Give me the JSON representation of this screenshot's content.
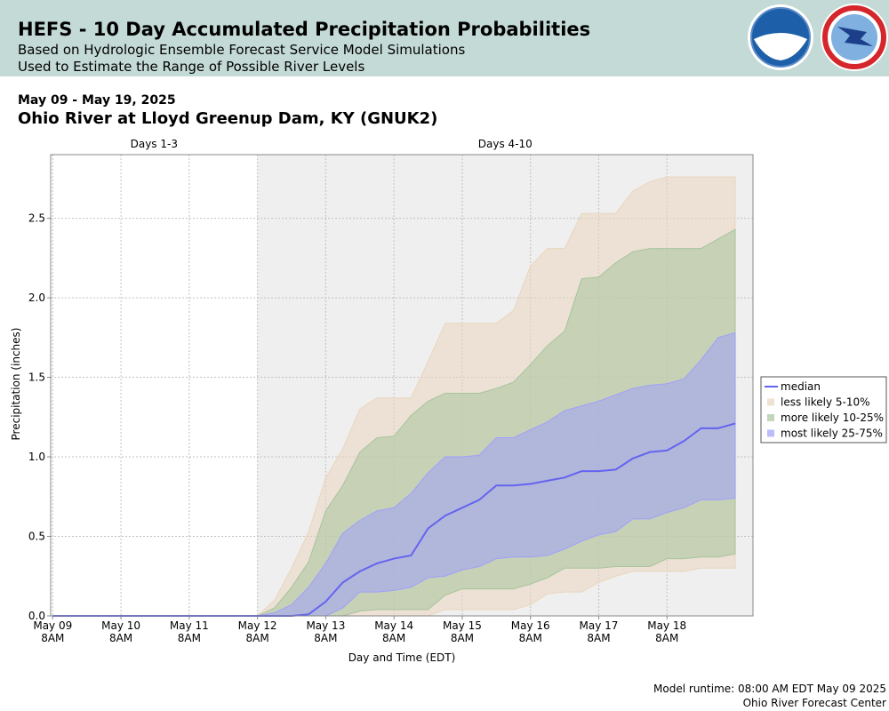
{
  "header": {
    "title": "HEFS - 10 Day Accumulated Precipitation Probabilities",
    "lines": [
      "Based on Hydrologic Ensemble Forecast Service Model Simulations",
      "Used to Estimate the Range of Possible River Levels"
    ]
  },
  "chart_data": {
    "type": "band_line",
    "date_range": "May 09 - May 19, 2025",
    "title": "Ohio River at Lloyd Greenup Dam, KY (GNUK2)",
    "xlabel": "Day and Time (EDT)",
    "ylabel": "Precipitation (inches)",
    "regions": [
      {
        "label": "Days 1-3",
        "from": -0.03,
        "to": 3,
        "color": "#ffffff"
      },
      {
        "label": "Days 4-10",
        "from": 3,
        "to": 10.26,
        "color": "#efefef"
      }
    ],
    "xlim": [
      -0.03,
      10.26
    ],
    "xticks": [
      {
        "value": 0,
        "label": "May 09\n8AM"
      },
      {
        "value": 1,
        "label": "May 10\n8AM"
      },
      {
        "value": 2,
        "label": "May 11\n8AM"
      },
      {
        "value": 3,
        "label": "May 12\n8AM"
      },
      {
        "value": 4,
        "label": "May 13\n8AM"
      },
      {
        "value": 5,
        "label": "May 14\n8AM"
      },
      {
        "value": 6,
        "label": "May 15\n8AM"
      },
      {
        "value": 7,
        "label": "May 16\n8AM"
      },
      {
        "value": 8,
        "label": "May 17\n8AM"
      },
      {
        "value": 9,
        "label": "May 18\n8AM"
      }
    ],
    "ylim": [
      0,
      2.9
    ],
    "yticks": [
      {
        "value": 0,
        "label": "0.0"
      },
      0.5,
      {
        "value": 1,
        "label": "1.0"
      },
      1.5,
      {
        "value": 2,
        "label": "2.0"
      },
      2.5
    ],
    "grid": true,
    "x": [
      0,
      0.25,
      0.5,
      0.75,
      1,
      1.25,
      1.5,
      1.75,
      2,
      2.25,
      2.5,
      2.75,
      3,
      3.25,
      3.5,
      3.75,
      4,
      4.25,
      4.5,
      4.75,
      5,
      5.25,
      5.5,
      5.75,
      6,
      6.25,
      6.5,
      6.75,
      7,
      7.25,
      7.5,
      7.75,
      8,
      8.25,
      8.5,
      8.75,
      9,
      9.25,
      9.5,
      9.75,
      10
    ],
    "bands": [
      {
        "name": "less likely 5-10%",
        "color": "#e9d6bd",
        "lower": [
          0,
          0,
          0,
          0,
          0,
          0,
          0,
          0,
          0,
          0,
          0,
          0,
          0,
          0,
          0,
          0,
          0,
          0,
          0,
          0,
          0,
          0,
          0,
          0.04,
          0.04,
          0.04,
          0.04,
          0.04,
          0.07,
          0.14,
          0.15,
          0.15,
          0.21,
          0.25,
          0.28,
          0.28,
          0.28,
          0.28,
          0.3,
          0.3,
          0.3
        ],
        "upper": [
          0,
          0,
          0,
          0,
          0,
          0,
          0,
          0,
          0,
          0,
          0,
          0,
          0,
          0.1,
          0.3,
          0.53,
          0.87,
          1.05,
          1.3,
          1.37,
          1.37,
          1.37,
          1.6,
          1.84,
          1.84,
          1.84,
          1.84,
          1.92,
          2.2,
          2.31,
          2.31,
          2.53,
          2.53,
          2.53,
          2.67,
          2.73,
          2.76,
          2.76,
          2.76,
          2.76,
          2.76
        ]
      },
      {
        "name": "more likely 10-25%",
        "color": "#a8c49c",
        "lower": [
          0,
          0,
          0,
          0,
          0,
          0,
          0,
          0,
          0,
          0,
          0,
          0,
          0,
          0,
          0,
          0,
          0,
          0,
          0.03,
          0.04,
          0.04,
          0.04,
          0.04,
          0.13,
          0.17,
          0.17,
          0.17,
          0.17,
          0.2,
          0.24,
          0.3,
          0.3,
          0.3,
          0.31,
          0.31,
          0.31,
          0.36,
          0.36,
          0.37,
          0.37,
          0.39
        ],
        "upper": [
          0,
          0,
          0,
          0,
          0,
          0,
          0,
          0,
          0,
          0,
          0,
          0,
          0,
          0.05,
          0.18,
          0.34,
          0.66,
          0.82,
          1.03,
          1.12,
          1.13,
          1.26,
          1.35,
          1.4,
          1.4,
          1.4,
          1.43,
          1.47,
          1.58,
          1.7,
          1.79,
          2.12,
          2.13,
          2.22,
          2.29,
          2.31,
          2.31,
          2.31,
          2.31,
          2.37,
          2.43
        ]
      },
      {
        "name": "most likely 25-75%",
        "color": "#a0a0fa",
        "lower": [
          0,
          0,
          0,
          0,
          0,
          0,
          0,
          0,
          0,
          0,
          0,
          0,
          0,
          0,
          0,
          0,
          0,
          0.05,
          0.15,
          0.15,
          0.16,
          0.18,
          0.24,
          0.25,
          0.29,
          0.31,
          0.36,
          0.37,
          0.37,
          0.38,
          0.42,
          0.47,
          0.51,
          0.53,
          0.61,
          0.61,
          0.65,
          0.68,
          0.73,
          0.73,
          0.74
        ],
        "upper": [
          0,
          0,
          0,
          0,
          0,
          0,
          0,
          0,
          0,
          0,
          0,
          0,
          0,
          0.02,
          0.07,
          0.18,
          0.33,
          0.52,
          0.6,
          0.66,
          0.68,
          0.77,
          0.9,
          1.0,
          1.0,
          1.01,
          1.12,
          1.12,
          1.17,
          1.22,
          1.29,
          1.32,
          1.35,
          1.39,
          1.43,
          1.45,
          1.46,
          1.49,
          1.61,
          1.75,
          1.78
        ]
      }
    ],
    "series": [
      {
        "name": "median",
        "color": "#6464f0",
        "values": [
          0,
          0,
          0,
          0,
          0,
          0,
          0,
          0,
          0,
          0,
          0,
          0,
          0,
          0,
          0,
          0.01,
          0.09,
          0.21,
          0.28,
          0.33,
          0.36,
          0.38,
          0.55,
          0.63,
          0.68,
          0.73,
          0.82,
          0.82,
          0.83,
          0.85,
          0.87,
          0.91,
          0.91,
          0.92,
          0.99,
          1.03,
          1.04,
          1.1,
          1.18,
          1.18,
          1.21
        ]
      }
    ]
  },
  "footer": [
    "Model runtime: 08:00 AM EDT May 09 2025",
    "Ohio River Forecast Center"
  ]
}
